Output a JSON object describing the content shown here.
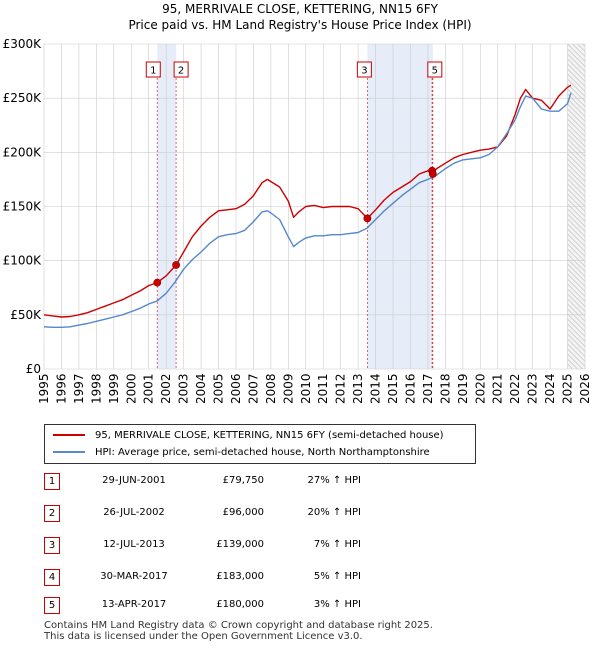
{
  "title_line1": "95, MERRIVALE CLOSE, KETTERING, NN15 6FY",
  "title_line2": "Price paid vs. HM Land Registry's House Price Index (HPI)",
  "colors": {
    "property": "#cc0000",
    "hpi": "#5588cc",
    "shade": "#e6ecf8",
    "grid": "#cccccc",
    "hatch": "#bbbbbb"
  },
  "chart_data": {
    "type": "line",
    "title": "95, MERRIVALE CLOSE, KETTERING, NN15 6FY",
    "subtitle": "Price paid vs. HM Land Registry's House Price Index (HPI)",
    "xlabel": "",
    "ylabel": "",
    "xlim": [
      1995,
      2026
    ],
    "ylim": [
      0,
      300000
    ],
    "grid": true,
    "legend_position": "bottom",
    "y_ticks": [
      {
        "value": 0,
        "label": "£0"
      },
      {
        "value": 50000,
        "label": "£50K"
      },
      {
        "value": 100000,
        "label": "£100K"
      },
      {
        "value": 150000,
        "label": "£150K"
      },
      {
        "value": 200000,
        "label": "£200K"
      },
      {
        "value": 250000,
        "label": "£250K"
      },
      {
        "value": 300000,
        "label": "£300K"
      }
    ],
    "x_ticks": [
      "1995",
      "1996",
      "1997",
      "1998",
      "1999",
      "2000",
      "2001",
      "2002",
      "2003",
      "2004",
      "2005",
      "2006",
      "2007",
      "2008",
      "2009",
      "2010",
      "2011",
      "2012",
      "2013",
      "2014",
      "2015",
      "2016",
      "2017",
      "2018",
      "2019",
      "2020",
      "2021",
      "2022",
      "2023",
      "2024",
      "2025",
      "2026"
    ],
    "shaded_ranges": [
      [
        2001.49,
        2002.57
      ],
      [
        2013.53,
        2017.28
      ]
    ],
    "future_from": 2025.0,
    "series": [
      {
        "name": "95, MERRIVALE CLOSE, KETTERING, NN15 6FY (semi-detached house)",
        "color": "#cc0000",
        "x": [
          1995.0,
          1995.5,
          1996.0,
          1996.5,
          1997.0,
          1997.5,
          1998.0,
          1998.5,
          1999.0,
          1999.5,
          2000.0,
          2000.5,
          2001.0,
          2001.49,
          2002.0,
          2002.57,
          2003.0,
          2003.5,
          2004.0,
          2004.5,
          2005.0,
          2005.5,
          2006.0,
          2006.5,
          2007.0,
          2007.5,
          2007.8,
          2008.0,
          2008.5,
          2009.0,
          2009.3,
          2009.6,
          2010.0,
          2010.5,
          2011.0,
          2011.5,
          2012.0,
          2012.5,
          2013.0,
          2013.53,
          2014.0,
          2014.5,
          2015.0,
          2015.5,
          2016.0,
          2016.5,
          2017.0,
          2017.25,
          2017.5,
          2018.0,
          2018.5,
          2019.0,
          2019.5,
          2020.0,
          2020.5,
          2021.0,
          2021.5,
          2022.0,
          2022.3,
          2022.6,
          2023.0,
          2023.5,
          2024.0,
          2024.5,
          2025.0,
          2025.2
        ],
        "y": [
          50000,
          49000,
          48000,
          48500,
          50000,
          52000,
          55000,
          58000,
          61000,
          64000,
          68000,
          72000,
          77000,
          79750,
          86000,
          96000,
          108000,
          122000,
          132000,
          140000,
          146000,
          147000,
          148000,
          152000,
          160000,
          172000,
          175000,
          173000,
          168000,
          155000,
          140000,
          145000,
          150000,
          151000,
          149000,
          150000,
          150000,
          150000,
          148000,
          139000,
          147000,
          156000,
          163000,
          168000,
          173000,
          180000,
          183000,
          180000,
          185000,
          190000,
          195000,
          198000,
          200000,
          202000,
          203000,
          205000,
          215000,
          235000,
          250000,
          258000,
          250000,
          248000,
          240000,
          252000,
          260000,
          262000
        ]
      },
      {
        "name": "HPI: Average price, semi-detached house, North Northamptonshire",
        "color": "#5588cc",
        "x": [
          1995.0,
          1995.5,
          1996.0,
          1996.5,
          1997.0,
          1997.5,
          1998.0,
          1998.5,
          1999.0,
          1999.5,
          2000.0,
          2000.5,
          2001.0,
          2001.5,
          2002.0,
          2002.5,
          2003.0,
          2003.5,
          2004.0,
          2004.5,
          2005.0,
          2005.5,
          2006.0,
          2006.5,
          2007.0,
          2007.5,
          2007.8,
          2008.0,
          2008.5,
          2009.0,
          2009.3,
          2009.6,
          2010.0,
          2010.5,
          2011.0,
          2011.5,
          2012.0,
          2012.5,
          2013.0,
          2013.5,
          2014.0,
          2014.5,
          2015.0,
          2015.5,
          2016.0,
          2016.5,
          2017.0,
          2017.5,
          2018.0,
          2018.5,
          2019.0,
          2019.5,
          2020.0,
          2020.5,
          2021.0,
          2021.5,
          2022.0,
          2022.3,
          2022.6,
          2023.0,
          2023.5,
          2024.0,
          2024.5,
          2025.0,
          2025.2
        ],
        "y": [
          39000,
          38500,
          38500,
          39000,
          40500,
          42000,
          44000,
          46000,
          48000,
          50000,
          53000,
          56000,
          60000,
          63000,
          70000,
          80000,
          92000,
          101000,
          108000,
          116000,
          122000,
          124000,
          125000,
          128000,
          136000,
          145000,
          146000,
          144000,
          138000,
          122000,
          113000,
          117000,
          121000,
          123000,
          123000,
          124000,
          124000,
          125000,
          126000,
          130000,
          138000,
          146000,
          153000,
          160000,
          166000,
          172000,
          175000,
          179000,
          185000,
          190000,
          193000,
          194000,
          195000,
          198000,
          205000,
          217000,
          230000,
          242000,
          252000,
          250000,
          240000,
          238000,
          238000,
          245000,
          255000
        ]
      }
    ],
    "transactions": [
      {
        "n": "1",
        "date": "29-JUN-2001",
        "x": 2001.49,
        "value": 79750,
        "price": "£79,750",
        "hpi": "27% ↑ HPI"
      },
      {
        "n": "2",
        "date": "26-JUL-2002",
        "x": 2002.57,
        "value": 96000,
        "price": "£96,000",
        "hpi": "20% ↑ HPI"
      },
      {
        "n": "3",
        "date": "12-JUL-2013",
        "x": 2013.53,
        "value": 139000,
        "price": "£139,000",
        "hpi": "7% ↑ HPI"
      },
      {
        "n": "4",
        "date": "30-MAR-2017",
        "x": 2017.24,
        "value": 183000,
        "price": "£183,000",
        "hpi": "5% ↑ HPI"
      },
      {
        "n": "5",
        "date": "13-APR-2017",
        "x": 2017.28,
        "value": 180000,
        "price": "£180,000",
        "hpi": "3% ↑ HPI"
      }
    ]
  },
  "legend": {
    "property_label": "95, MERRIVALE CLOSE, KETTERING, NN15 6FY (semi-detached house)",
    "hpi_label": "HPI: Average price, semi-detached house, North Northamptonshire"
  },
  "footer": {
    "line1": "Contains HM Land Registry data © Crown copyright and database right 2025.",
    "line2": "This data is licensed under the Open Government Licence v3.0."
  }
}
